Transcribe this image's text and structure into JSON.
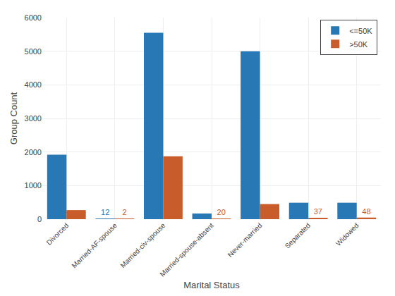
{
  "chart_data": {
    "type": "bar",
    "categories": [
      "Divorced",
      "Married-AF-spouse",
      "Married-civ-spouse",
      "Married-spouse-absent",
      "Never-married",
      "Separated",
      "Widowed"
    ],
    "series": [
      {
        "name": "<=50K",
        "color": "#2878b5",
        "values": [
          1920,
          12,
          5550,
          170,
          5000,
          490,
          490
        ]
      },
      {
        "name": ">50K",
        "color": "#c85c2a",
        "values": [
          270,
          2,
          1870,
          20,
          450,
          37,
          48
        ]
      }
    ],
    "xlabel": "Marital Status",
    "ylabel": "Group Count",
    "ylim": [
      0,
      6000
    ],
    "yticks": [
      0,
      1000,
      2000,
      3000,
      4000,
      5000,
      6000
    ],
    "grid": true,
    "legend": "upper right",
    "annotations": [
      {
        "text": "12",
        "category": "Married-AF-spouse",
        "series": "<=50K",
        "color": "#2878b5"
      },
      {
        "text": "2",
        "category": "Married-AF-spouse",
        "series": ">50K",
        "color": "#c85c2a"
      },
      {
        "text": "20",
        "category": "Married-spouse-absent",
        "series": ">50K",
        "color": "#c85c2a"
      },
      {
        "text": "37",
        "category": "Separated",
        "series": ">50K",
        "color": "#c85c2a"
      },
      {
        "text": "48",
        "category": "Widowed",
        "series": ">50K",
        "color": "#c85c2a"
      }
    ]
  }
}
